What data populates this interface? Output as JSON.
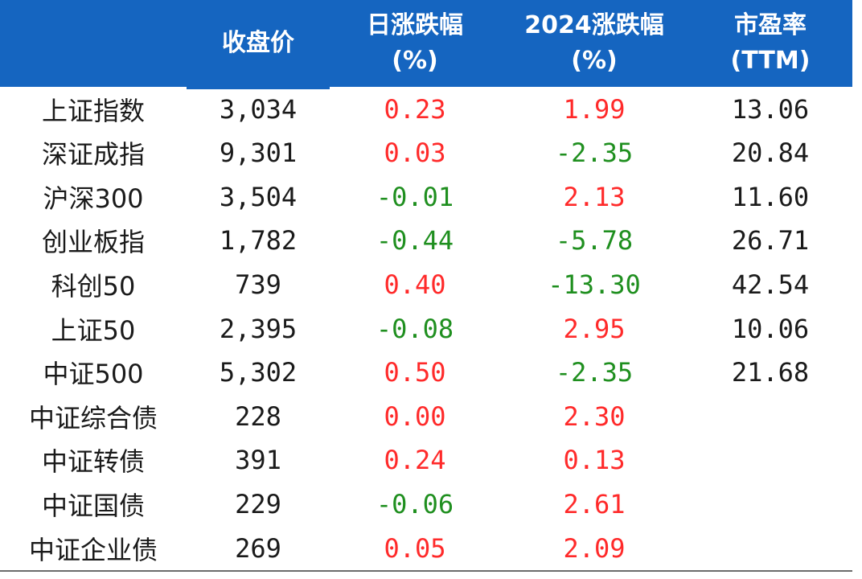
{
  "header": {
    "col0": "",
    "col1": "收盘价",
    "col2_line1": "日涨跌幅",
    "col2_line2": "(%)",
    "col3_line1": "2024涨跌幅",
    "col3_line2": "(%)",
    "col4_line1": "市盈率",
    "col4_line2": "(TTM)"
  },
  "rows": [
    {
      "name": "上证指数",
      "close": "3,034",
      "daily": "0.23",
      "ytd": "1.99",
      "pe": "13.06"
    },
    {
      "name": "深证成指",
      "close": "9,301",
      "daily": "0.03",
      "ytd": "-2.35",
      "pe": "20.84"
    },
    {
      "name": "沪深300",
      "close": "3,504",
      "daily": "-0.01",
      "ytd": "2.13",
      "pe": "11.60"
    },
    {
      "name": "创业板指",
      "close": "1,782",
      "daily": "-0.44",
      "ytd": "-5.78",
      "pe": "26.71"
    },
    {
      "name": "科创50",
      "close": "739",
      "daily": "0.40",
      "ytd": "-13.30",
      "pe": "42.54"
    },
    {
      "name": "上证50",
      "close": "2,395",
      "daily": "-0.08",
      "ytd": "2.95",
      "pe": "10.06"
    },
    {
      "name": "中证500",
      "close": "5,302",
      "daily": "0.50",
      "ytd": "-2.35",
      "pe": "21.68"
    },
    {
      "name": "中证综合债",
      "close": "228",
      "daily": "0.00",
      "ytd": "2.30",
      "pe": ""
    },
    {
      "name": "中证转债",
      "close": "391",
      "daily": "0.24",
      "ytd": "0.13",
      "pe": ""
    },
    {
      "name": "中证国债",
      "close": "229",
      "daily": "-0.06",
      "ytd": "2.61",
      "pe": ""
    },
    {
      "name": "中证企业债",
      "close": "269",
      "daily": "0.05",
      "ytd": "2.09",
      "pe": ""
    }
  ],
  "colors": {
    "header_bg": "#1565c0",
    "positive": "#ff2a2a",
    "negative": "#1f8f1f"
  }
}
